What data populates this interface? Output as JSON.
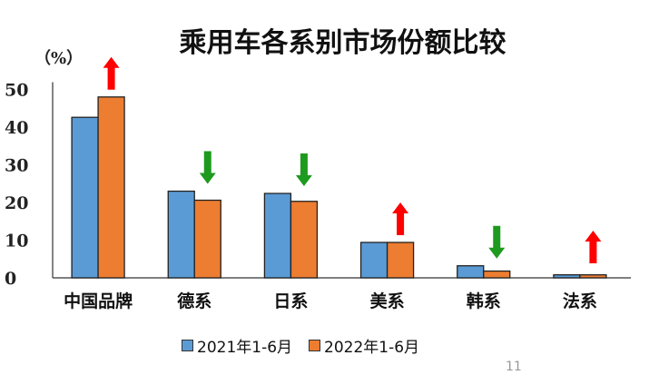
{
  "chart_data": {
    "type": "bar",
    "title": "乘用车各系别市场份额比较",
    "ylabel": "（%）",
    "xlabel": "",
    "ylim": [
      0,
      50
    ],
    "yticks": [
      0,
      10,
      20,
      30,
      40,
      50
    ],
    "grid": false,
    "legend_position": "bottom",
    "categories": [
      "中国品牌",
      "德系",
      "日系",
      "美系",
      "韩系",
      "法系"
    ],
    "series": [
      {
        "name": "2021年1-6月",
        "color": "#5b9bd5",
        "values": [
          42.6,
          23.0,
          22.4,
          9.4,
          3.2,
          0.8
        ]
      },
      {
        "name": "2022年1-6月",
        "color": "#ed7d31",
        "values": [
          48.0,
          20.6,
          20.3,
          9.4,
          1.8,
          0.8
        ]
      }
    ],
    "change_arrows": [
      "up",
      "down",
      "down",
      "up",
      "down",
      "up"
    ],
    "arrow_colors": {
      "up": "#ff0000",
      "down": "#1e9a1e"
    }
  },
  "page_number": "11"
}
